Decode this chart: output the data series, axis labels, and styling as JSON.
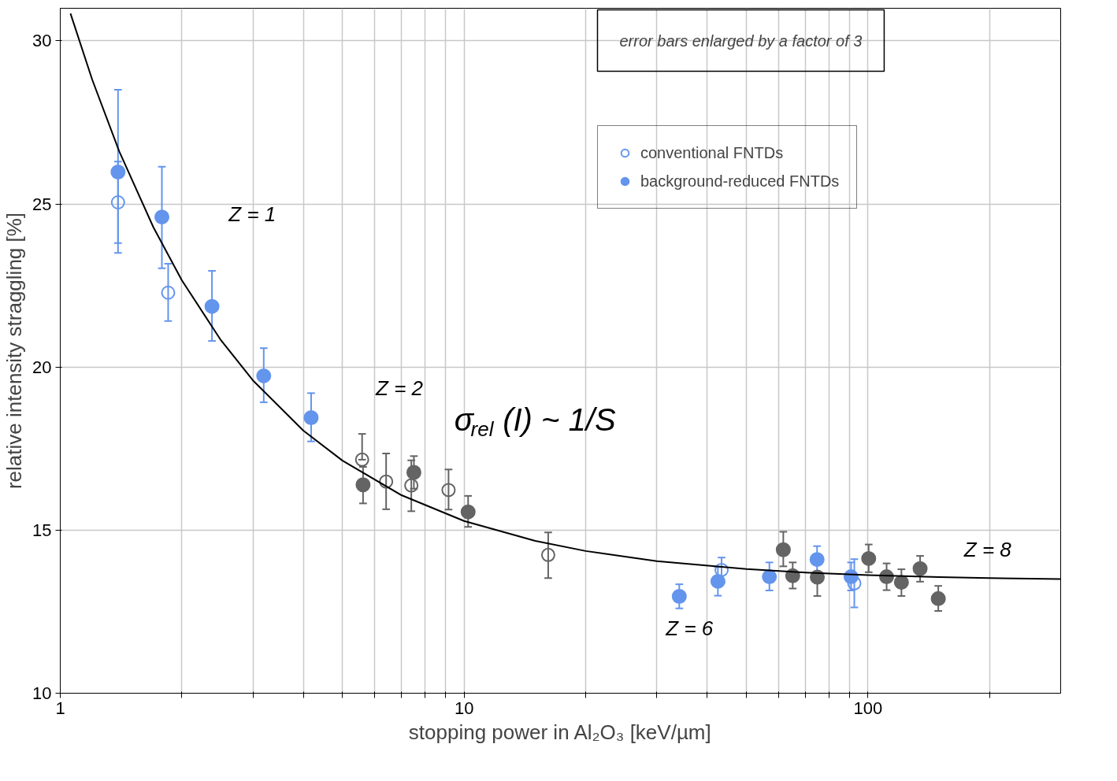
{
  "chart_data": {
    "type": "scatter",
    "xlabel": "stopping power in Al₂O₃ [keV/µm]",
    "ylabel": "relative intensity straggling [%]",
    "log": "x",
    "xlim": [
      1,
      300
    ],
    "xticks": [
      1,
      {
        "value": 2,
        "label": null
      },
      {
        "value": 3,
        "label": null
      },
      {
        "value": 4,
        "label": null
      },
      {
        "value": 5,
        "label": null
      },
      {
        "value": 6,
        "label": null
      },
      {
        "value": 7,
        "label": null
      },
      {
        "value": 8,
        "label": null
      },
      {
        "value": 9,
        "label": null
      },
      10,
      {
        "value": 20,
        "label": null
      },
      {
        "value": 30,
        "label": null
      },
      {
        "value": 40,
        "label": null
      },
      {
        "value": 50,
        "label": null
      },
      {
        "value": 60,
        "label": null
      },
      {
        "value": 70,
        "label": null
      },
      {
        "value": 80,
        "label": null
      },
      {
        "value": 90,
        "label": null
      },
      100,
      {
        "value": 200,
        "label": null
      }
    ],
    "ylim": [
      10,
      31
    ],
    "yticks": [
      10,
      15,
      20,
      25,
      30
    ],
    "grid": true,
    "legend": "top right",
    "series": [
      {
        "name": "conventional FNTDs",
        "marker": "circle_open",
        "x": [
          1.39,
          1.85,
          5.59,
          6.41,
          7.4,
          9.15,
          16.15,
          43.4,
          92.5
        ],
        "values": [
          25.05,
          22.28,
          17.16,
          16.49,
          16.37,
          16.23,
          14.24,
          13.78,
          13.37
        ],
        "errors": [
          [
            23.8,
            26.3
          ],
          [
            21.41,
            23.17
          ],
          [
            17.16,
            17.95
          ],
          [
            15.64,
            17.35
          ],
          [
            15.58,
            17.14
          ],
          [
            15.63,
            16.86
          ],
          [
            13.53,
            14.93
          ],
          [
            13.4,
            14.16
          ],
          [
            12.63,
            14.11
          ]
        ],
        "colors": [
          "#6495ed",
          "#6495ed",
          "#646464",
          "#646464",
          "#646464",
          "#646464",
          "#646464",
          "#6495ed",
          "#6495ed"
        ]
      },
      {
        "name": "background-reduced FNTDs",
        "marker": "circle",
        "x": [
          1.39,
          1.785,
          2.375,
          3.19,
          4.18,
          5.62,
          7.51,
          10.23,
          34.1,
          42.5,
          57.0,
          61.7,
          65.1,
          74.8,
          74.9,
          90.8,
          100.4,
          111.2,
          121,
          134.6,
          149.3
        ],
        "values": [
          25.98,
          24.6,
          21.86,
          19.73,
          18.45,
          16.39,
          16.77,
          15.56,
          12.97,
          13.43,
          13.57,
          14.4,
          13.6,
          14.1,
          13.56,
          13.57,
          14.13,
          13.57,
          13.4,
          13.82,
          12.9
        ],
        "errors": [
          [
            23.5,
            28.5
          ],
          [
            23.03,
            26.14
          ],
          [
            20.8,
            22.95
          ],
          [
            18.92,
            20.58
          ],
          [
            17.72,
            19.2
          ],
          [
            15.82,
            16.94
          ],
          [
            16.27,
            17.27
          ],
          [
            15.1,
            16.05
          ],
          [
            12.6,
            13.34
          ],
          [
            12.99,
            13.87
          ],
          [
            13.15,
            14.01
          ],
          [
            13.89,
            14.95
          ],
          [
            13.21,
            14.01
          ],
          [
            13.7,
            14.51
          ],
          [
            12.98,
            13.56
          ],
          [
            13.15,
            14.01
          ],
          [
            13.71,
            14.56
          ],
          [
            13.16,
            13.98
          ],
          [
            12.98,
            13.8
          ],
          [
            13.42,
            14.21
          ],
          [
            12.52,
            13.29
          ]
        ],
        "colors": [
          "#6495ed",
          "#6495ed",
          "#6495ed",
          "#6495ed",
          "#6495ed",
          "#646464",
          "#646464",
          "#646464",
          "#6495ed",
          "#6495ed",
          "#6495ed",
          "#646464",
          "#646464",
          "#6495ed",
          "#646464",
          "#6495ed",
          "#646464",
          "#646464",
          "#646464",
          "#646464",
          "#646464"
        ]
      },
      {
        "type": "line",
        "color": "#000000",
        "marker": "none",
        "x": [
          1.06,
          1.2,
          1.4,
          1.7,
          2,
          2.5,
          3,
          4,
          5,
          7,
          10,
          15,
          20,
          30,
          50,
          70,
          100,
          150,
          200,
          300
        ],
        "values": [
          30.84,
          28.81,
          26.61,
          24.29,
          22.66,
          20.82,
          19.59,
          18.05,
          17.13,
          16.07,
          15.28,
          14.67,
          14.36,
          14.05,
          13.81,
          13.7,
          13.62,
          13.56,
          13.53,
          13.5
        ]
      }
    ],
    "annotations": [
      "error bars enlarged by a factor of 3",
      "Z = 1",
      "Z = 2",
      "Z = 6",
      "Z = 8",
      "σ$_{rel}$ (I) ~ 1/S"
    ]
  }
}
